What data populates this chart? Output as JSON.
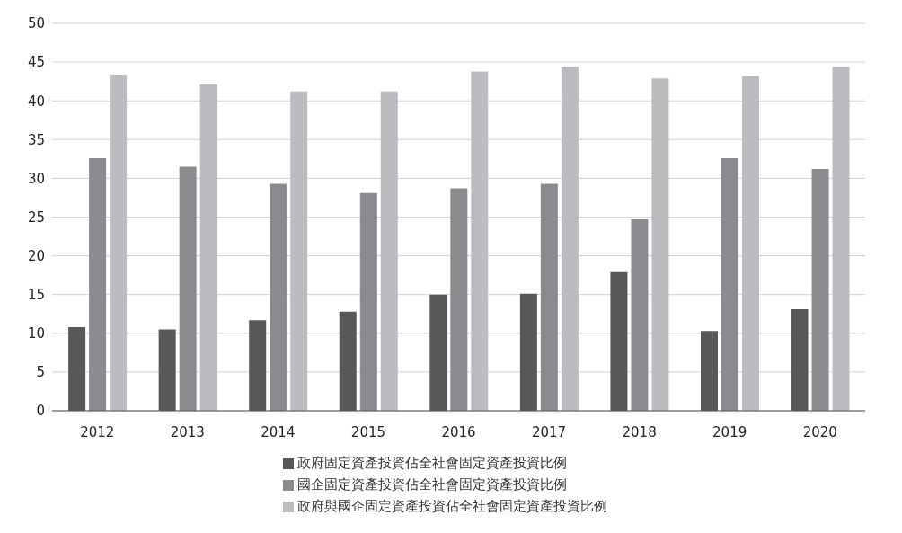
{
  "chart_data": {
    "type": "bar",
    "categories": [
      "2012",
      "2013",
      "2014",
      "2015",
      "2016",
      "2017",
      "2018",
      "2019",
      "2020"
    ],
    "series": [
      {
        "name": "政府固定資產投資佔全社會固定資產投資比例",
        "color": "#58585a",
        "values": [
          10.8,
          10.5,
          11.7,
          12.8,
          15.0,
          15.1,
          17.9,
          10.3,
          13.1
        ]
      },
      {
        "name": "國企固定資產投資佔全社會固定資產投資比例",
        "color": "#8a8b8e",
        "values": [
          32.6,
          31.5,
          29.3,
          28.1,
          28.7,
          29.3,
          24.7,
          32.6,
          31.2
        ]
      },
      {
        "name": "政府與國企固定資產投資佔全社會固定資產投資比例",
        "color": "#bbbcc0",
        "values": [
          43.4,
          42.1,
          41.2,
          41.2,
          43.8,
          44.4,
          42.9,
          43.2,
          44.4
        ]
      }
    ],
    "ylim": [
      0,
      50
    ],
    "yticks": [
      0,
      5,
      10,
      15,
      20,
      25,
      30,
      35,
      40,
      45,
      50
    ],
    "grid": "y",
    "legend": "bottom"
  }
}
